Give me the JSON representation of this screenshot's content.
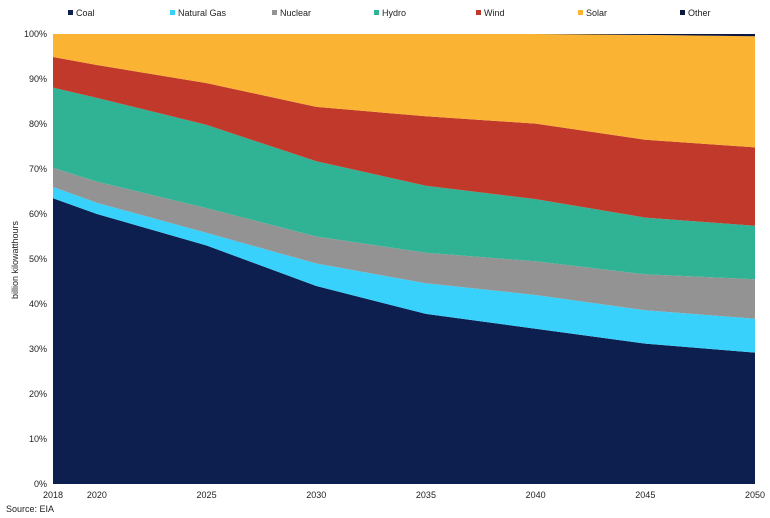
{
  "chart_data": {
    "type": "area",
    "stacked": true,
    "normalized": true,
    "ylabel": "billion kilowatthours",
    "x": [
      2018,
      2020,
      2025,
      2030,
      2035,
      2040,
      2045,
      2050
    ],
    "ylim": [
      0,
      100
    ],
    "yticks": [
      "0%",
      "10%",
      "20%",
      "30%",
      "40%",
      "50%",
      "60%",
      "70%",
      "80%",
      "90%",
      "100%"
    ],
    "legend_position": "top",
    "series": [
      {
        "name": "Coal",
        "color": "#0d1f4f",
        "values": [
          63.5,
          60,
          53,
          44,
          37.8,
          34.5,
          31.2,
          29.2
        ]
      },
      {
        "name": "Natural Gas",
        "color": "#38d1fc",
        "values": [
          2.5,
          2.5,
          2.8,
          5,
          6.8,
          7.5,
          7.4,
          7.5
        ]
      },
      {
        "name": "Nuclear",
        "color": "#939393",
        "values": [
          4.3,
          4.7,
          5.5,
          6,
          6.8,
          7.5,
          8,
          8.8
        ]
      },
      {
        "name": "Hydro",
        "color": "#2fb394",
        "values": [
          17.8,
          18.6,
          18.5,
          16.7,
          14.9,
          13.8,
          12.6,
          11.9
        ]
      },
      {
        "name": "Wind",
        "color": "#c0392b",
        "values": [
          6.8,
          7.3,
          9.3,
          12.1,
          15.4,
          16.8,
          17.3,
          17.4
        ]
      },
      {
        "name": "Solar",
        "color": "#fbb333",
        "values": [
          5.1,
          6.9,
          10.9,
          16.2,
          18.3,
          19.9,
          23.3,
          24.7
        ]
      },
      {
        "name": "Other",
        "color": "#0a1540",
        "values": [
          0,
          0,
          0,
          0,
          0,
          0,
          0.2,
          0.5
        ]
      }
    ]
  },
  "source": "Source: EIA"
}
